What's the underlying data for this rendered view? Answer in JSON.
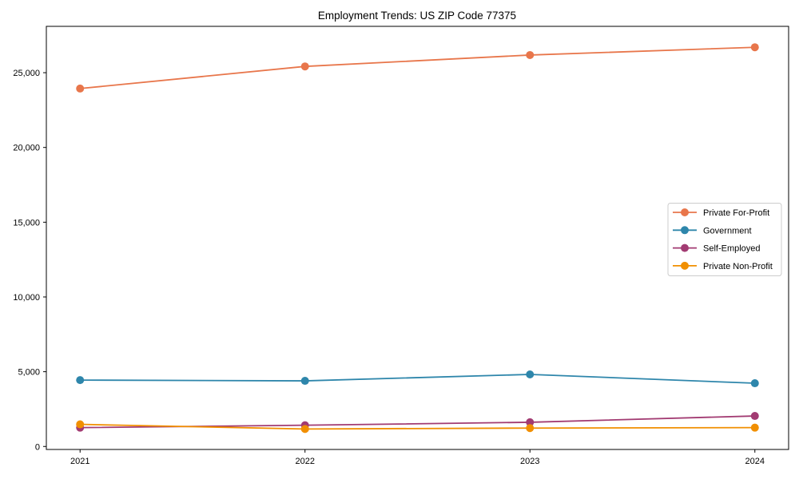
{
  "title": "Employment Trends: US ZIP Code 77375",
  "chart_data": {
    "type": "line",
    "title": "Employment Trends: US ZIP Code 77375",
    "x": [
      2021,
      2022,
      2023,
      2024
    ],
    "xtick_labels": [
      "2021",
      "2022",
      "2023",
      "2024"
    ],
    "series": [
      {
        "name": "Private For-Profit",
        "color": "#E8764B",
        "values": [
          23940,
          25420,
          26180,
          26700
        ]
      },
      {
        "name": "Government",
        "color": "#2E86AB",
        "values": [
          4440,
          4390,
          4820,
          4230
        ]
      },
      {
        "name": "Self-Employed",
        "color": "#A23B72",
        "values": [
          1260,
          1420,
          1620,
          2040
        ]
      },
      {
        "name": "Private Non-Profit",
        "color": "#F18F01",
        "values": [
          1480,
          1170,
          1230,
          1260
        ]
      }
    ],
    "xlabel": "",
    "ylabel": "",
    "yticks": [
      0,
      5000,
      10000,
      15000,
      20000,
      25000
    ],
    "ytick_labels": [
      "0",
      "5,000",
      "10,000",
      "15,000",
      "20,000",
      "25,000"
    ],
    "xlim": [
      2020.85,
      2024.15
    ],
    "ylim": [
      -200,
      28100
    ],
    "grid": false,
    "marker": "o",
    "legend": {
      "position": "center right",
      "entries": [
        "Private For-Profit",
        "Government",
        "Self-Employed",
        "Private Non-Profit"
      ]
    },
    "frame_color": "#000000",
    "legend_border_color": "#cccccc",
    "background_color": "#ffffff"
  }
}
